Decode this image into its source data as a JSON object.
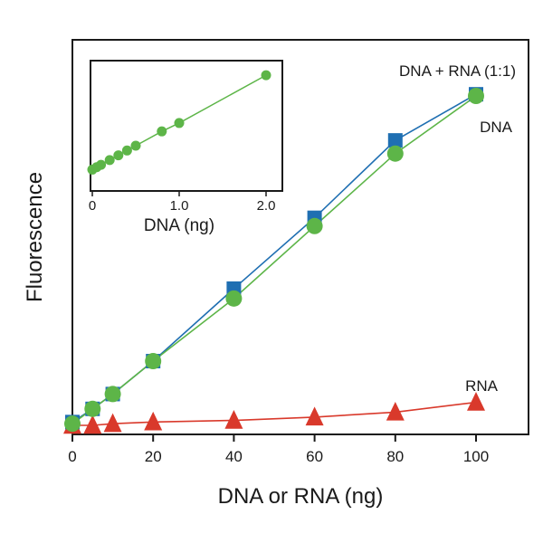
{
  "chart_data": [
    {
      "id": "main",
      "type": "line",
      "title": "",
      "xlabel": "DNA or RNA (ng)",
      "ylabel": "Fluorescence",
      "xlim": [
        0,
        110
      ],
      "ylim": [
        0,
        100
      ],
      "xticks": [
        0,
        20,
        40,
        60,
        80,
        100
      ],
      "yticks": [],
      "grid": false,
      "series": [
        {
          "name": "DNA + RNA (1:1)",
          "color": "#1f6fb2",
          "marker": "square",
          "x": [
            0,
            5,
            10,
            20,
            40,
            60,
            80,
            100
          ],
          "y": [
            1,
            5,
            9.5,
            19.5,
            41.5,
            63,
            86.5,
            100.5
          ]
        },
        {
          "name": "DNA",
          "color": "#5db548",
          "marker": "circle",
          "x": [
            0,
            5,
            10,
            20,
            40,
            60,
            80,
            100
          ],
          "y": [
            0.5,
            5,
            9.5,
            19.5,
            38.5,
            60.5,
            82.5,
            100
          ]
        },
        {
          "name": "RNA",
          "color": "#d9392b",
          "marker": "triangle",
          "x": [
            0,
            5,
            10,
            20,
            40,
            60,
            80,
            100
          ],
          "y": [
            0,
            0,
            0.5,
            1,
            1.5,
            2.5,
            4,
            7
          ]
        }
      ],
      "annotations": [
        "DNA + RNA (1:1)",
        "DNA",
        "RNA"
      ]
    },
    {
      "id": "inset",
      "type": "line",
      "title": "",
      "xlabel": "DNA (ng)",
      "ylabel": "",
      "xlim": [
        -0.05,
        2.2
      ],
      "ylim": [
        0,
        100
      ],
      "xticks": [
        "0",
        "1.0",
        "2.0"
      ],
      "xtick_values": [
        0,
        1,
        2
      ],
      "yticks": [],
      "grid": false,
      "series": [
        {
          "name": "DNA",
          "color": "#5db548",
          "marker": "circle",
          "x": [
            0,
            0.05,
            0.1,
            0.2,
            0.3,
            0.4,
            0.5,
            0.8,
            1.0,
            2.0
          ],
          "y": [
            8,
            10,
            12,
            16,
            20,
            24,
            28,
            40,
            47,
            87
          ]
        }
      ]
    }
  ]
}
